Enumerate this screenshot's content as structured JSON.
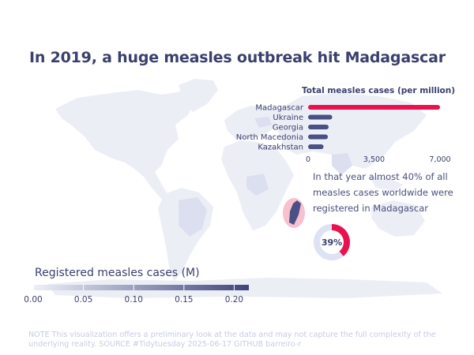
{
  "title": "In 2019, a huge measles outbreak hit Madagascar",
  "colors": {
    "accent": "#e8124f",
    "bar": "#4a4f85",
    "text": "#3a3f6d",
    "map_land": "#eceef6",
    "legend_low": "#eef0f8",
    "legend_high": "#3f457b",
    "donut_track": "#dde2f5",
    "highlight_halo": "#f7c1cf"
  },
  "chart_data": [
    {
      "type": "bar",
      "orientation": "horizontal",
      "title": "Total measles cases (per million)",
      "categories": [
        "Madagascar",
        "Ukraine",
        "Georgia",
        "North Macedonia",
        "Kazakhstan"
      ],
      "values": [
        7000,
        1280,
        1090,
        1050,
        820
      ],
      "highlight": "Madagascar",
      "xlim": [
        0,
        7000
      ],
      "xticks": [
        "0",
        "3,500",
        "7,000"
      ]
    },
    {
      "type": "pie",
      "variant": "donut",
      "values": [
        39,
        61
      ],
      "center_label": "39%"
    },
    {
      "type": "choropleth-map",
      "legend_title": "Registered measles cases (M)",
      "legend_ticks": [
        "0.00",
        "0.05",
        "0.10",
        "0.15",
        "0.20"
      ],
      "highlight_country": "Madagascar"
    }
  ],
  "annotation": "In that year almost 40% of all measles cases worldwide were registered in Madagascar",
  "footer": {
    "note_label": "NOTE",
    "note_text": "This visualization offers a preliminary look at the data and may not capture the full complexity of the underlying reality.",
    "source_label": "SOURCE",
    "source_text": "#Tidytuesday 2025-06-17",
    "github_label": "GITHUB",
    "github_text": "barreiro-r"
  }
}
